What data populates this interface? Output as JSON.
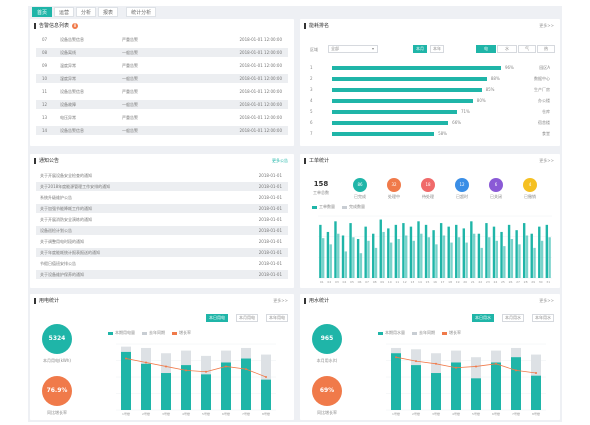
{
  "header": {
    "tabs": [
      {
        "label": "首页",
        "active": true
      },
      {
        "label": "运营",
        "active": false
      },
      {
        "label": "分析",
        "active": false
      },
      {
        "label": "报表",
        "active": false
      },
      {
        "label": "统计分析",
        "active": false
      }
    ]
  },
  "alerts": {
    "title": "告警信息列表",
    "badge": "8",
    "more": "",
    "rows": [
      [
        "07",
        "设备告警信息",
        "严重告警",
        "2018-01-01 12:00:00"
      ],
      [
        "08",
        "设备离线",
        "一般告警",
        "2018-01-01 12:00:00"
      ],
      [
        "09",
        "温度异常",
        "严重告警",
        "2018-01-01 12:00:00"
      ],
      [
        "10",
        "湿度异常",
        "一般告警",
        "2018-01-01 12:00:00"
      ],
      [
        "11",
        "设备告警信息",
        "严重告警",
        "2018-01-01 12:00:00"
      ],
      [
        "12",
        "设备故障",
        "一般告警",
        "2018-01-01 12:00:00"
      ],
      [
        "13",
        "电压异常",
        "严重告警",
        "2018-01-01 12:00:00"
      ],
      [
        "14",
        "设备告警信息",
        "一般告警",
        "2018-01-01 12:00:00"
      ]
    ]
  },
  "ranking": {
    "title": "能耗排名",
    "more": "更多>>",
    "select_label": "区域",
    "select_value": "全部",
    "toggle": [
      "本月",
      "本年"
    ],
    "filters": [
      "电",
      "水",
      "气",
      "热"
    ],
    "items": [
      {
        "rank": "1",
        "pct": 96,
        "value": "96%",
        "name": "园区A"
      },
      {
        "rank": "2",
        "pct": 88,
        "value": "88%",
        "name": "数据中心"
      },
      {
        "rank": "3",
        "pct": 85,
        "value": "85%",
        "name": "生产厂房"
      },
      {
        "rank": "4",
        "pct": 80,
        "value": "80%",
        "name": "办公楼"
      },
      {
        "rank": "5",
        "pct": 71,
        "value": "71%",
        "name": "仓库"
      },
      {
        "rank": "6",
        "pct": 66,
        "value": "66%",
        "name": "宿舍楼"
      },
      {
        "rank": "7",
        "pct": 58,
        "value": "58%",
        "name": "食堂"
      }
    ]
  },
  "notices": {
    "title": "通知公告",
    "more": "更多公告",
    "rows": [
      [
        "关于开展设备安全检查的通知",
        "2018-01-01"
      ],
      [
        "关于2018年度能源管理工作安排的通知",
        "2018-01-01"
      ],
      [
        "系统升级维护公告",
        "2018-01-01"
      ],
      [
        "关于加强节能降耗工作的通知",
        "2018-01-01"
      ],
      [
        "关于开展消防安全演练的通知",
        "2018-01-01"
      ],
      [
        "设备巡检计划公告",
        "2018-01-01"
      ],
      [
        "关于调整用电时段的通知",
        "2018-01-01"
      ],
      [
        "关于年度能耗统计报表报送的通知",
        "2018-01-01"
      ],
      [
        "节假日值班安排公告",
        "2018-01-01"
      ],
      [
        "关于设备维护保养的通知",
        "2018-01-01"
      ]
    ]
  },
  "work": {
    "title": "工单统计",
    "more": "更多>>",
    "total_value": "158",
    "total_label": "工单总数",
    "stats": [
      {
        "value": "86",
        "label": "已完成",
        "color": "#1fb5a8"
      },
      {
        "value": "32",
        "label": "处理中",
        "color": "#f07a4a"
      },
      {
        "value": "18",
        "label": "待处理",
        "color": "#f06a6a"
      },
      {
        "value": "12",
        "label": "已超时",
        "color": "#3a8ee6"
      },
      {
        "value": "6",
        "label": "已关闭",
        "color": "#8a5ad6"
      },
      {
        "value": "4",
        "label": "已撤销",
        "color": "#f5c022"
      }
    ],
    "legend": [
      "工单数量",
      "完成数量"
    ]
  },
  "chart_work": {
    "type": "bar",
    "categories": [
      "01",
      "02",
      "03",
      "04",
      "05",
      "06",
      "07",
      "08",
      "09",
      "10",
      "11",
      "12",
      "13",
      "14",
      "15",
      "16",
      "17",
      "18",
      "19",
      "20",
      "21",
      "22",
      "23",
      "24",
      "25",
      "26",
      "27",
      "28",
      "29",
      "30",
      "31"
    ],
    "series": [
      {
        "name": "工单数量",
        "values": [
          60,
          52,
          64,
          48,
          62,
          44,
          58,
          50,
          66,
          56,
          60,
          62,
          58,
          64,
          60,
          54,
          62,
          58,
          60,
          56,
          64,
          50,
          62,
          58,
          52,
          60,
          54,
          62,
          50,
          58,
          60
        ]
      },
      {
        "name": "完成数量",
        "values": [
          45,
          38,
          50,
          30,
          46,
          28,
          42,
          34,
          52,
          40,
          44,
          48,
          42,
          50,
          46,
          38,
          48,
          40,
          46,
          40,
          50,
          34,
          46,
          42,
          36,
          44,
          38,
          48,
          34,
          42,
          46
        ]
      }
    ],
    "ylim": [
      0,
      70
    ]
  },
  "electric": {
    "title": "用电统计",
    "more": "更多>>",
    "toggles": [
      "本日用电",
      "本月用电",
      "本年用电"
    ],
    "kpi1": {
      "value": "5324",
      "label": "本月用电(kWh)"
    },
    "kpi2": {
      "value": "76.9%",
      "label": "同比增长率"
    },
    "legend": [
      "本期用电量",
      "去年同期",
      "增长率"
    ],
    "colors": {
      "kpi1": "#1fb5a8",
      "kpi2": "#f07a4a"
    }
  },
  "chart_electric": {
    "type": "bar",
    "categories": [
      "1号楼",
      "2号楼",
      "3号楼",
      "4号楼",
      "5号楼",
      "6号楼",
      "7号楼",
      "8号楼"
    ],
    "series": [
      {
        "name": "本期用电量",
        "values": [
          88,
          70,
          56,
          68,
          54,
          72,
          78,
          46
        ]
      },
      {
        "name": "去年同期",
        "values": [
          96,
          94,
          86,
          90,
          82,
          90,
          94,
          84
        ]
      },
      {
        "name": "增长率",
        "values": [
          78,
          72,
          66,
          60,
          58,
          66,
          62,
          50
        ]
      }
    ],
    "ylim": [
      0,
      100
    ]
  },
  "water": {
    "title": "用水统计",
    "more": "更多>>",
    "toggles": [
      "本日用水",
      "本月用水",
      "本年用水"
    ],
    "kpi1": {
      "value": "965",
      "label": "本月用水(t)"
    },
    "kpi2": {
      "value": "69%",
      "label": "同比增长率"
    },
    "legend": [
      "本期用水量",
      "去年同期",
      "增长率"
    ],
    "colors": {
      "kpi1": "#1fb5a8",
      "kpi2": "#f07a4a"
    }
  },
  "chart_water": {
    "type": "bar",
    "categories": [
      "1号楼",
      "2号楼",
      "3号楼",
      "4号楼",
      "5号楼",
      "6号楼",
      "7号楼",
      "8号楼"
    ],
    "series": [
      {
        "name": "本期用水量",
        "values": [
          86,
          68,
          56,
          72,
          48,
          72,
          80,
          52
        ]
      },
      {
        "name": "去年同期",
        "values": [
          94,
          92,
          86,
          90,
          80,
          90,
          94,
          84
        ]
      },
      {
        "name": "增长率",
        "values": [
          80,
          74,
          70,
          64,
          66,
          70,
          60,
          56
        ]
      }
    ],
    "ylim": [
      0,
      100
    ]
  }
}
